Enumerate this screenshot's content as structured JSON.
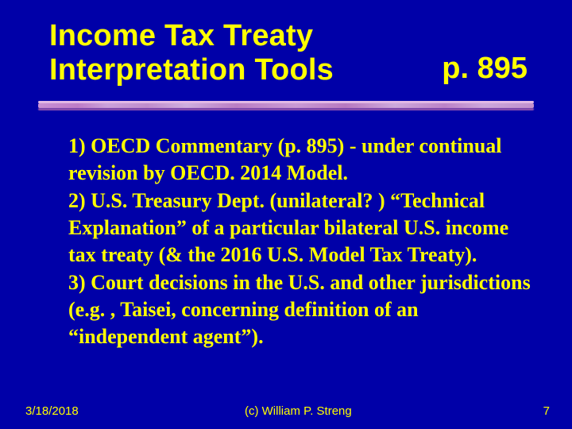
{
  "colors": {
    "background": "#0000a8",
    "text": "#ffff00",
    "divider_top": "#eec2e8",
    "divider_mid_stops": [
      "#e5a6dd",
      "#d98fcc",
      "#e7b8e2",
      "#dba1d2",
      "#ecc7e7",
      "#d590c9",
      "#e6b0dc",
      "#d28ac4",
      "#eac1e4",
      "#d796cd",
      "#e9bfe3",
      "#dca4d3"
    ],
    "divider_bottom": "#b768b0"
  },
  "typography": {
    "title_font": "Arial",
    "title_weight": 900,
    "title_size_pt": 28,
    "body_font": "Times New Roman",
    "body_weight": "bold",
    "body_size_pt": 20,
    "footer_font": "Arial",
    "footer_size_pt": 11
  },
  "title": {
    "main_line1": "Income Tax Treaty",
    "main_line2": "Interpretation Tools",
    "page_ref": "p. 895"
  },
  "body": "1)  OECD Commentary (p. 895) - under continual revision by OECD.  2014 Model.\n2)  U.S. Treasury Dept. (unilateral? ) “Technical  Explanation” of a particular bilateral U.S. income tax treaty (& the 2016 U.S. Model Tax Treaty).\n3) Court decisions in the U.S. and other jurisdictions (e.g. , Taisei, concerning definition of an “independent agent”).",
  "footer": {
    "date": "3/18/2018",
    "copyright": "(c)  William P. Streng",
    "slide_number": "7"
  }
}
